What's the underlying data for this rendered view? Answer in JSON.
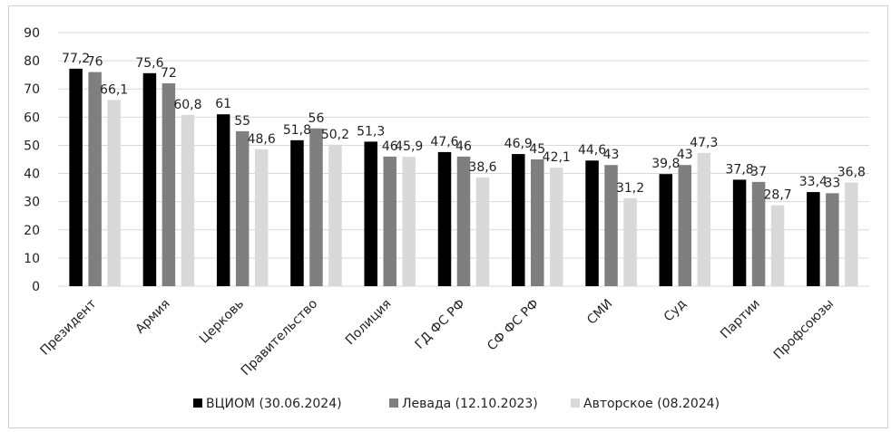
{
  "chart_data": {
    "type": "bar",
    "title": "",
    "xlabel": "",
    "ylabel": "",
    "ylim": [
      0,
      90
    ],
    "yticks": [
      0,
      10,
      20,
      30,
      40,
      50,
      60,
      70,
      80,
      90
    ],
    "grid": true,
    "legend_position": "bottom",
    "categories": [
      "Президент",
      "Армия",
      "Церковь",
      "Правительство",
      "Полиция",
      "ГД ФС РФ",
      "СФ ФС РФ",
      "СМИ",
      "Суд",
      "Партии",
      "Профсоюзы"
    ],
    "series": [
      {
        "name": "ВЦИОМ (30.06.2024)",
        "color": "#000000",
        "values": [
          77.2,
          75.6,
          61,
          51.8,
          51.3,
          47.6,
          46.9,
          44.6,
          39.8,
          37.8,
          33.4
        ]
      },
      {
        "name": "Левада (12.10.2023)",
        "color": "#7f7f7f",
        "values": [
          76,
          72,
          55,
          56,
          46,
          46,
          45,
          43,
          43,
          37,
          33
        ]
      },
      {
        "name": "Авторское (08.2024)",
        "color": "#d9d9d9",
        "values": [
          66.1,
          60.8,
          48.6,
          50.2,
          45.9,
          38.6,
          42.1,
          31.2,
          47.3,
          28.7,
          36.8
        ]
      }
    ],
    "data_labels": [
      [
        "77,2",
        "75,6",
        "61",
        "51,8",
        "51,3",
        "47,6",
        "46,9",
        "44,6",
        "39,8",
        "37,8",
        "33,4"
      ],
      [
        "76",
        "72",
        "55",
        "56",
        "46",
        "46",
        "45",
        "43",
        "43",
        "37",
        "33"
      ],
      [
        "66,1",
        "60,8",
        "48,6",
        "50,2",
        "45,9",
        "38,6",
        "42,1",
        "31,2",
        "47,3",
        "28,7",
        "36,8"
      ]
    ]
  }
}
